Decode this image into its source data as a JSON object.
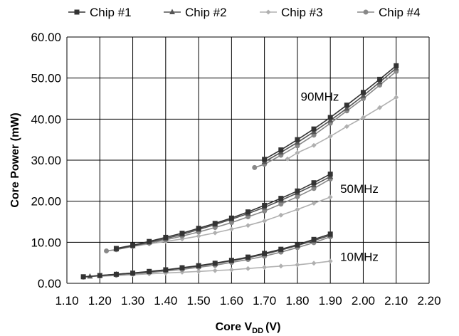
{
  "chart_data": {
    "type": "line",
    "xlabel": "Core V",
    "xlabel_subscript": "DD",
    "xlabel_unit": "(V)",
    "ylabel": "Core Power (mW)",
    "xlim": [
      1.1,
      2.2
    ],
    "ylim": [
      0.0,
      60.0
    ],
    "xticks": [
      "1.10",
      "1.20",
      "1.30",
      "1.40",
      "1.50",
      "1.60",
      "1.70",
      "1.80",
      "1.90",
      "2.00",
      "2.10",
      "2.20"
    ],
    "yticks": [
      "0.00",
      "10.00",
      "20.00",
      "30.00",
      "40.00",
      "50.00",
      "60.00"
    ],
    "grid": true,
    "legend_position": "top",
    "annotations": [
      {
        "text": "90MHz",
        "x": 1.81,
        "y": 44.5
      },
      {
        "text": "50MHz",
        "x": 1.93,
        "y": 22.0
      },
      {
        "text": "10MHz",
        "x": 1.93,
        "y": 5.5
      }
    ],
    "series": [
      {
        "name": "Chip #1",
        "marker": "square",
        "color": "#333333",
        "segments": [
          {
            "x": [
              1.15,
              1.2,
              1.25,
              1.3,
              1.35,
              1.4,
              1.45,
              1.5,
              1.55,
              1.6,
              1.65,
              1.7,
              1.75,
              1.8,
              1.85,
              1.9
            ],
            "y": [
              1.6,
              1.9,
              2.2,
              2.5,
              2.9,
              3.3,
              3.8,
              4.3,
              4.9,
              5.6,
              6.4,
              7.3,
              8.3,
              9.4,
              10.7,
              12.0
            ]
          },
          {
            "x": [
              1.25,
              1.3,
              1.35,
              1.4,
              1.45,
              1.5,
              1.55,
              1.6,
              1.65,
              1.7,
              1.75,
              1.8,
              1.85,
              1.9
            ],
            "y": [
              8.5,
              9.3,
              10.2,
              11.2,
              12.2,
              13.4,
              14.6,
              15.9,
              17.4,
              19.0,
              20.7,
              22.5,
              24.5,
              26.6
            ]
          },
          {
            "x": [
              1.7,
              1.75,
              1.8,
              1.85,
              1.9,
              1.95,
              2.0,
              2.05,
              2.1
            ],
            "y": [
              30.2,
              32.5,
              35.0,
              37.6,
              40.4,
              43.4,
              46.5,
              49.7,
              53.0
            ]
          }
        ]
      },
      {
        "name": "Chip #2",
        "marker": "triangle",
        "color": "#555555",
        "segments": [
          {
            "x": [
              1.17,
              1.2,
              1.25,
              1.3,
              1.35,
              1.4,
              1.45,
              1.5,
              1.55,
              1.6,
              1.65,
              1.7,
              1.75,
              1.8,
              1.85,
              1.9
            ],
            "y": [
              1.7,
              1.9,
              2.2,
              2.5,
              2.8,
              3.2,
              3.7,
              4.2,
              4.8,
              5.5,
              6.2,
              7.1,
              8.1,
              9.2,
              10.4,
              11.7
            ]
          },
          {
            "x": [
              1.25,
              1.3,
              1.35,
              1.4,
              1.45,
              1.5,
              1.55,
              1.6,
              1.65,
              1.7,
              1.75,
              1.8,
              1.85,
              1.9
            ],
            "y": [
              8.3,
              9.1,
              10.0,
              10.9,
              11.9,
              13.1,
              14.3,
              15.6,
              17.0,
              18.5,
              20.2,
              22.0,
              23.9,
              26.0
            ]
          },
          {
            "x": [
              1.7,
              1.75,
              1.8,
              1.85,
              1.9,
              1.95,
              2.0,
              2.05,
              2.1
            ],
            "y": [
              29.6,
              31.9,
              34.3,
              36.9,
              39.7,
              42.6,
              45.7,
              49.0,
              52.4
            ]
          }
        ]
      },
      {
        "name": "Chip #3",
        "marker": "diamond",
        "color": "#b0b0b0",
        "segments": [
          {
            "x": [
              1.2,
              1.25,
              1.3,
              1.35,
              1.4,
              1.45,
              1.5,
              1.55,
              1.6,
              1.65,
              1.7,
              1.75,
              1.8,
              1.85,
              1.9
            ],
            "y": [
              1.7,
              1.9,
              2.1,
              2.3,
              2.5,
              2.7,
              2.9,
              3.1,
              3.3,
              3.6,
              3.9,
              4.2,
              4.5,
              4.9,
              5.4
            ]
          },
          {
            "x": [
              1.3,
              1.35,
              1.4,
              1.45,
              1.5,
              1.55,
              1.6,
              1.65,
              1.7,
              1.75,
              1.8,
              1.85,
              1.9
            ],
            "y": [
              9.0,
              9.6,
              10.2,
              10.8,
              11.5,
              12.3,
              13.2,
              14.1,
              15.2,
              16.6,
              18.0,
              19.5,
              21.0
            ]
          },
          {
            "x": [
              1.77,
              1.8,
              1.85,
              1.9,
              1.95,
              2.0,
              2.05,
              2.1
            ],
            "y": [
              30.3,
              31.8,
              33.6,
              35.8,
              38.2,
              40.4,
              42.8,
              45.3
            ]
          }
        ]
      },
      {
        "name": "Chip #4",
        "marker": "circle",
        "color": "#888888",
        "segments": [
          {
            "x": [
              1.15,
              1.2,
              1.25,
              1.3,
              1.35,
              1.4,
              1.45,
              1.5,
              1.55,
              1.6,
              1.65,
              1.7,
              1.75,
              1.8,
              1.85,
              1.9
            ],
            "y": [
              1.5,
              1.8,
              2.0,
              2.3,
              2.6,
              3.0,
              3.4,
              3.9,
              4.4,
              5.1,
              5.8,
              6.6,
              7.6,
              8.7,
              9.9,
              11.3
            ]
          },
          {
            "x": [
              1.22,
              1.25,
              1.3,
              1.35,
              1.4,
              1.45,
              1.5,
              1.55,
              1.6,
              1.65,
              1.7,
              1.75,
              1.8,
              1.85,
              1.9
            ],
            "y": [
              7.9,
              8.2,
              9.0,
              9.8,
              10.6,
              11.5,
              12.5,
              13.6,
              14.8,
              16.2,
              17.6,
              19.3,
              21.1,
              23.1,
              25.4
            ]
          },
          {
            "x": [
              1.67,
              1.7,
              1.75,
              1.8,
              1.85,
              1.9,
              1.95,
              2.0,
              2.05,
              2.1
            ],
            "y": [
              28.2,
              29.0,
              31.2,
              33.5,
              36.1,
              39.0,
              42.0,
              45.0,
              48.3,
              51.6
            ]
          }
        ]
      }
    ]
  }
}
